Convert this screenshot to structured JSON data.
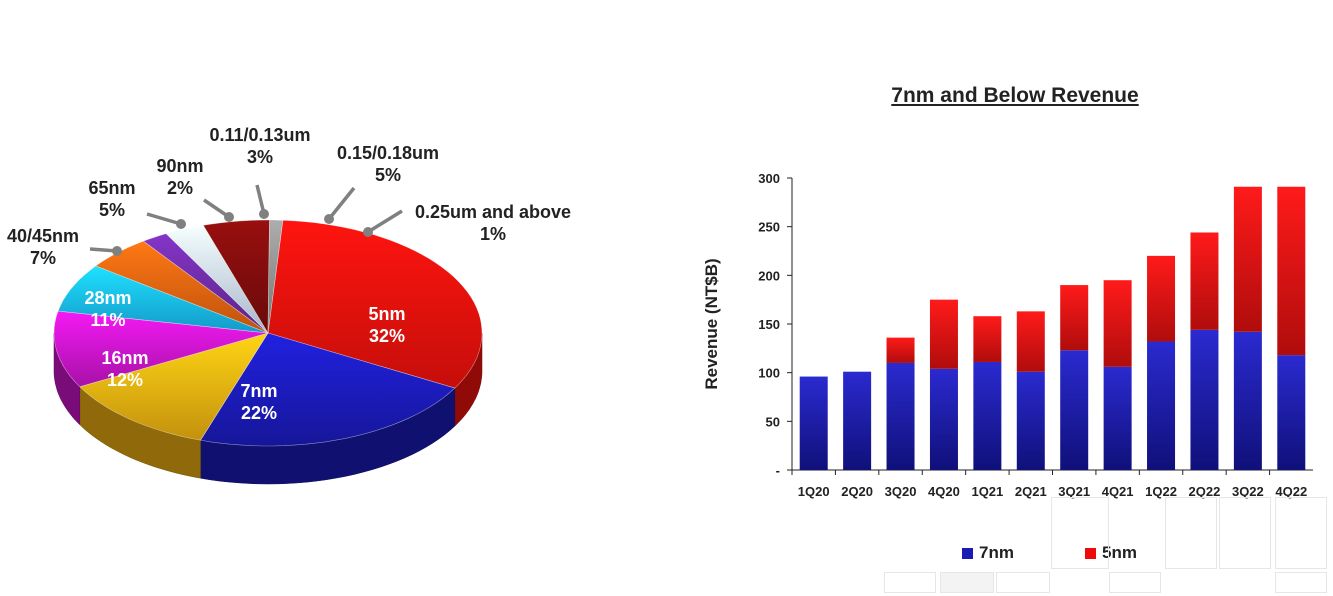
{
  "chart_data": [
    {
      "type": "pie",
      "title": "",
      "slices": [
        {
          "label": "5nm",
          "value": 32,
          "pct_label": "32%",
          "color": "#e8100c"
        },
        {
          "label": "7nm",
          "value": 22,
          "pct_label": "22%",
          "color": "#1a1ab4"
        },
        {
          "label": "16nm",
          "value": 12,
          "pct_label": "12%",
          "color": "#e6aa10"
        },
        {
          "label": "28nm",
          "value": 11,
          "pct_label": "11%",
          "color": "#c414c4"
        },
        {
          "label": "40/45nm",
          "value": 7,
          "pct_label": "7%",
          "color": "#18b4ec"
        },
        {
          "label": "65nm",
          "value": 5,
          "pct_label": "5%",
          "color": "#e06010"
        },
        {
          "label": "90nm",
          "value": 2,
          "pct_label": "2%",
          "color": "#6a2aa0"
        },
        {
          "label": "0.11/0.13um",
          "value": 3,
          "pct_label": "3%",
          "color": "#c4d6ee"
        },
        {
          "label": "0.15/0.18um",
          "value": 5,
          "pct_label": "5%",
          "color": "#7a0c0c"
        },
        {
          "label": "0.25um and above",
          "value": 1,
          "pct_label": "1%",
          "color": "#8a8a8a"
        }
      ]
    },
    {
      "type": "bar",
      "stacked": true,
      "title": "7nm and Below Revenue",
      "ylabel": "Revenue (NT$B)",
      "xlabel": "",
      "ylim": [
        0,
        300
      ],
      "yticks": [
        "-",
        "50",
        "100",
        "150",
        "200",
        "250",
        "300"
      ],
      "categories": [
        "1Q20",
        "2Q20",
        "3Q20",
        "4Q20",
        "1Q21",
        "2Q21",
        "3Q21",
        "4Q21",
        "1Q22",
        "2Q22",
        "3Q22",
        "4Q22"
      ],
      "series": [
        {
          "name": "7nm",
          "color": "#1a1ab4",
          "values": [
            96,
            101,
            110,
            104,
            111,
            101,
            123,
            106,
            132,
            144,
            142,
            118
          ]
        },
        {
          "name": "5nm",
          "color": "#ee0a0a",
          "values": [
            0,
            0,
            26,
            71,
            47,
            62,
            67,
            89,
            88,
            100,
            149,
            173
          ]
        }
      ],
      "legend_position": "bottom"
    }
  ]
}
